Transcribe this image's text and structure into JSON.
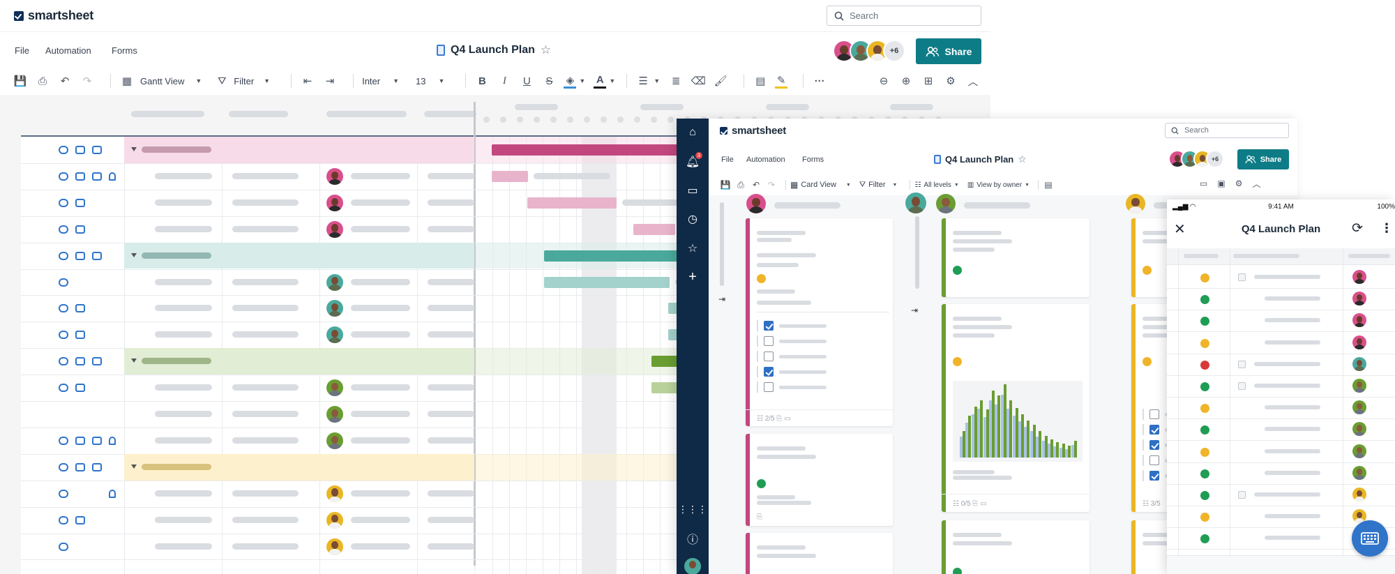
{
  "brand": {
    "name": "smartsheet"
  },
  "search": {
    "placeholder": "Search"
  },
  "menu": [
    "File",
    "Automation",
    "Forms"
  ],
  "sheet": {
    "title": "Q4 Launch Plan"
  },
  "collaborators": {
    "more_label": "+6"
  },
  "share": {
    "label": "Share"
  },
  "toolbar": {
    "view_label": "Gantt View",
    "filter_label": "Filter",
    "font_label": "Inter",
    "size_label": "13"
  },
  "card_view": {
    "view_label": "Card View",
    "filter_label": "Filter",
    "levels_label": "All levels",
    "owner_label": "View by owner",
    "notification_count": "3",
    "counts": [
      "2/5",
      "0/5",
      "3/5"
    ]
  },
  "mobile": {
    "time": "9:41 AM",
    "battery": "100%",
    "title": "Q4 Launch Plan"
  },
  "colors": {
    "accent": "#0e7c86",
    "nav": "#0f2a47",
    "pink": "#c2477f",
    "teal": "#4aa99c",
    "green": "#6a9d32",
    "yellow": "#e9b624",
    "status_green": "#1f9d55",
    "status_yellow": "#f0b429",
    "status_red": "#d93838",
    "chart_blue": "#a9c2e6"
  },
  "icons": [
    "search-icon",
    "star-icon",
    "share-icon",
    "save-icon",
    "print-icon",
    "undo-icon",
    "redo-icon",
    "grid-icon",
    "filter-icon",
    "bold-icon",
    "italic-icon",
    "underline-icon",
    "strikethrough-icon",
    "fill-color-icon",
    "text-color-icon",
    "align-icon",
    "wrap-icon",
    "eraser-icon",
    "format-painter-icon",
    "more-icon",
    "zoom-out-icon",
    "zoom-in-icon",
    "settings-icon",
    "home-icon",
    "bell-icon",
    "folder-icon",
    "clock-icon",
    "plus-icon",
    "apps-icon",
    "help-icon",
    "close-icon",
    "refresh-icon",
    "keyboard-icon"
  ]
}
